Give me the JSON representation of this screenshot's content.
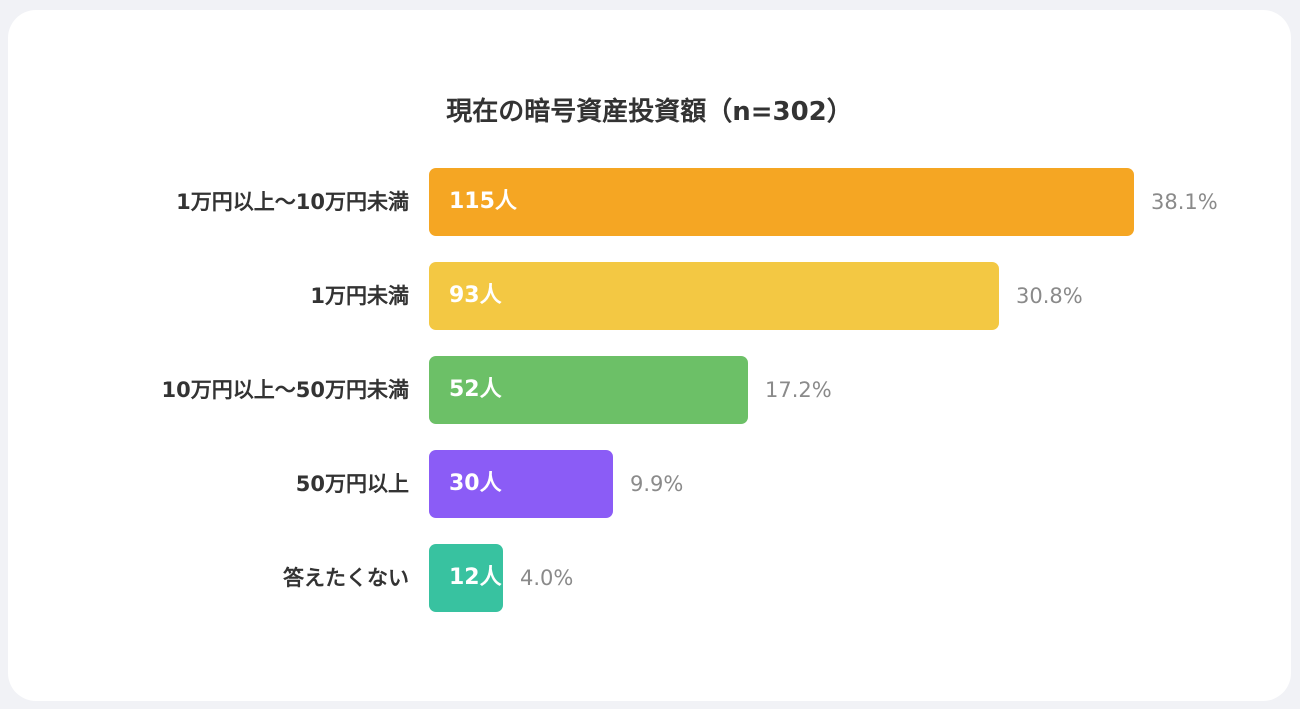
{
  "chart_data": {
    "type": "bar",
    "orientation": "horizontal",
    "title": "現在の暗号資産投資額（n=302）",
    "categories": [
      "1万円以上〜10万円未満",
      "1万円未満",
      "10万円以上〜50万円未満",
      "50万円以上",
      "答えたくない"
    ],
    "values": [
      115,
      93,
      52,
      30,
      12
    ],
    "count_labels": [
      "115人",
      "93人",
      "52人",
      "30人",
      "12人"
    ],
    "percent_labels": [
      "38.1%",
      "30.8%",
      "17.2%",
      "9.9%",
      "4.0%"
    ],
    "colors": [
      "#f5a623",
      "#f3c843",
      "#6cc067",
      "#8b5cf6",
      "#38c2a0"
    ],
    "grid": false,
    "legend": "none"
  }
}
